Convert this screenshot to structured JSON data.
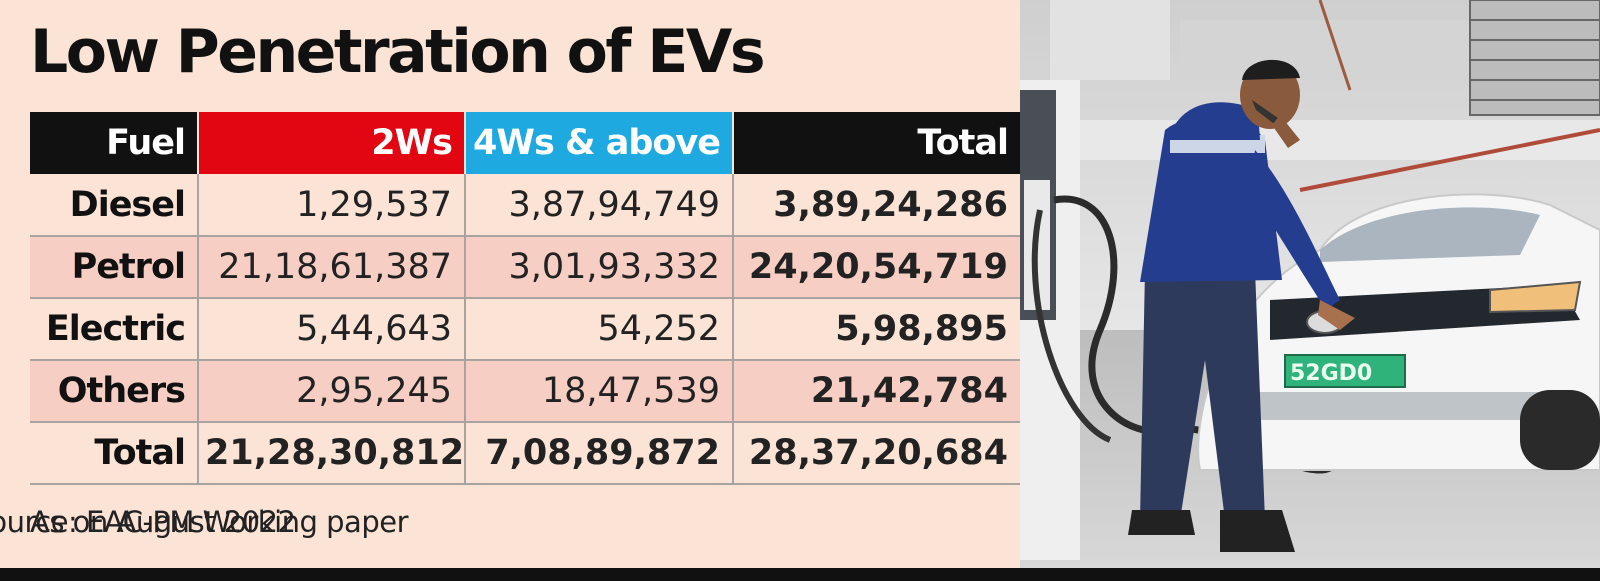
{
  "title": "Low Penetration of EVs",
  "chart_data": {
    "type": "table",
    "title": "Low Penetration of EVs",
    "columns": [
      "Fuel",
      "2Ws",
      "4Ws & above",
      "Total"
    ],
    "rows": [
      {
        "fuel": "Diesel",
        "two_w": "1,29,537",
        "four_w": "3,87,94,749",
        "total": "3,89,24,286"
      },
      {
        "fuel": "Petrol",
        "two_w": "21,18,61,387",
        "four_w": "3,01,93,332",
        "total": "24,20,54,719"
      },
      {
        "fuel": "Electric",
        "two_w": "5,44,643",
        "four_w": "54,252",
        "total": "5,98,895"
      },
      {
        "fuel": "Others",
        "two_w": "2,95,245",
        "four_w": "18,47,539",
        "total": "21,42,784"
      },
      {
        "fuel": "Total",
        "two_w": "21,28,30,812",
        "four_w": "7,08,89,872",
        "total": "28,37,20,684"
      }
    ],
    "header_colors": {
      "fuel": "#111111",
      "two_w": "#e20613",
      "four_w": "#1ea9e1",
      "total": "#111111"
    }
  },
  "footnotes": {
    "left": "As on August 2022",
    "right": "Source: EAC-PM Working paper"
  },
  "photo": {
    "description_icon": "ev-charging-photo",
    "plate_text": "52GD0"
  }
}
